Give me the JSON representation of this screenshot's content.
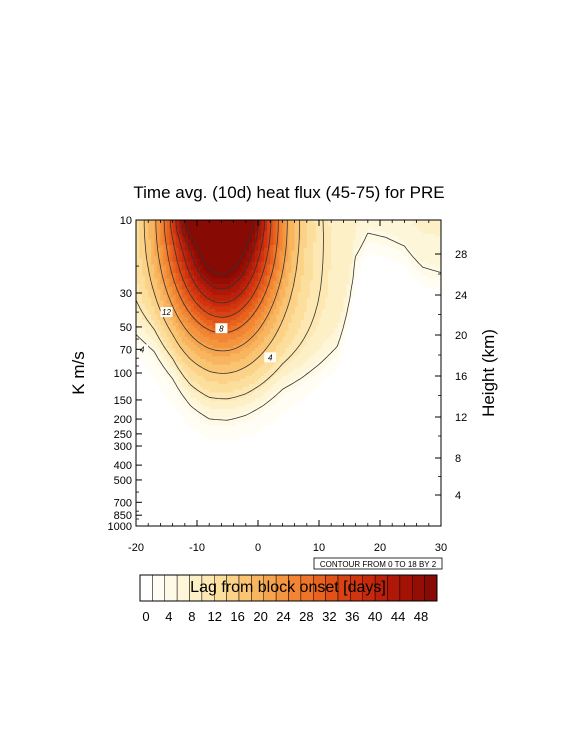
{
  "chart_data": {
    "type": "heatmap",
    "title": "Time avg. (10d) heat flux (45-75) for PRE",
    "xlabel": "Lag from block onset [days]",
    "ylabel": "K m/s",
    "ylabel_right": "Height (km)",
    "x_ticks": [
      "-20",
      "-10",
      "0",
      "10",
      "20",
      "30"
    ],
    "x_values": [
      -20,
      -10,
      0,
      10,
      20,
      30
    ],
    "xlim": [
      -20,
      30
    ],
    "y_ticks": [
      "10",
      "30",
      "50",
      "70",
      "100",
      "150",
      "200",
      "250",
      "300",
      "400",
      "500",
      "700",
      "850",
      "1000"
    ],
    "y_values": [
      10,
      30,
      50,
      70,
      100,
      150,
      200,
      250,
      300,
      400,
      500,
      700,
      850,
      1000
    ],
    "ylim": [
      1000,
      10
    ],
    "y_scale": "log",
    "y_right_ticks": [
      "4",
      "8",
      "12",
      "16",
      "20",
      "24",
      "28"
    ],
    "contour_info": "CONTOUR FROM 0 TO 18 BY 2",
    "contour_labels": [
      "12",
      "8",
      "4",
      "4"
    ],
    "colorbar": {
      "labels": [
        "0",
        "4",
        "8",
        "12",
        "16",
        "20",
        "24",
        "28",
        "32",
        "36",
        "40",
        "44",
        "48"
      ],
      "colors": [
        "#ffffff",
        "#fffdf4",
        "#fffae6",
        "#fef6d8",
        "#fdf0c6",
        "#fde8b3",
        "#fcde9d",
        "#fbd287",
        "#fac472",
        "#f8b55f",
        "#f6a54e",
        "#f4953f",
        "#f18533",
        "#ed7428",
        "#e8631f",
        "#e15218",
        "#d94313",
        "#d0350f",
        "#c6290c",
        "#bb200a",
        "#af1808",
        "#a21306",
        "#940e05",
        "#870a04"
      ]
    },
    "contour_levels": [
      2,
      4,
      6,
      8,
      10,
      12,
      14,
      16,
      18
    ],
    "field_max": 18
  }
}
